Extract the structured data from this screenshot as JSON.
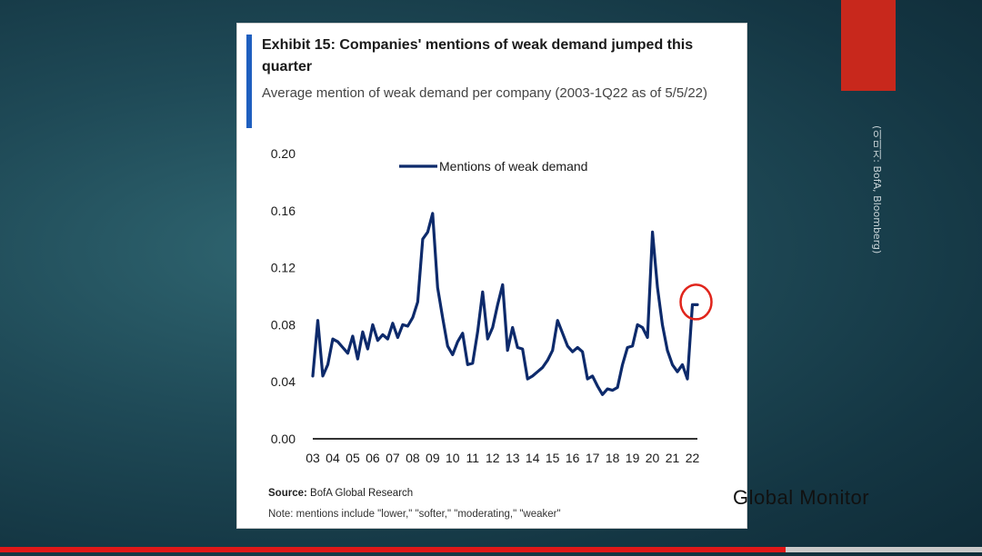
{
  "side_credit": "(이미지: BofA, Bloomberg)",
  "brand": "Global Monitor",
  "progress": 0.8,
  "colors": {
    "line": "#0d2a6b",
    "highlight": "#e0241b",
    "accent": "#c8281c",
    "title_bar": "#1f5fbf"
  },
  "chart_data": {
    "type": "line",
    "title": "Exhibit 15: Companies' mentions of weak demand jumped this quarter",
    "subtitle": "Average mention of weak demand per company (2003-1Q22 as of 5/5/22)",
    "x_tick_labels": [
      "03",
      "04",
      "05",
      "06",
      "07",
      "08",
      "09",
      "10",
      "11",
      "12",
      "13",
      "14",
      "15",
      "16",
      "17",
      "18",
      "19",
      "20",
      "21",
      "22"
    ],
    "xlim": [
      2003,
      2022.25
    ],
    "ylim": [
      0,
      0.2
    ],
    "y_ticks": [
      0.0,
      0.04,
      0.08,
      0.12,
      0.16,
      0.2
    ],
    "y_tick_labels": [
      "0.00",
      "0.04",
      "0.08",
      "0.12",
      "0.16",
      "0.20"
    ],
    "legend": {
      "position": "top-center"
    },
    "series": [
      {
        "name": "Mentions  of weak demand",
        "x": [
          2003.0,
          2003.25,
          2003.5,
          2003.75,
          2004.0,
          2004.25,
          2004.5,
          2004.75,
          2005.0,
          2005.25,
          2005.5,
          2005.75,
          2006.0,
          2006.25,
          2006.5,
          2006.75,
          2007.0,
          2007.25,
          2007.5,
          2007.75,
          2008.0,
          2008.25,
          2008.5,
          2008.75,
          2009.0,
          2009.25,
          2009.5,
          2009.75,
          2010.0,
          2010.25,
          2010.5,
          2010.75,
          2011.0,
          2011.25,
          2011.5,
          2011.75,
          2012.0,
          2012.25,
          2012.5,
          2012.75,
          2013.0,
          2013.25,
          2013.5,
          2013.75,
          2014.0,
          2014.25,
          2014.5,
          2014.75,
          2015.0,
          2015.25,
          2015.5,
          2015.75,
          2016.0,
          2016.25,
          2016.5,
          2016.75,
          2017.0,
          2017.25,
          2017.5,
          2017.75,
          2018.0,
          2018.25,
          2018.5,
          2018.75,
          2019.0,
          2019.25,
          2019.5,
          2019.75,
          2020.0,
          2020.25,
          2020.5,
          2020.75,
          2021.0,
          2021.25,
          2021.5,
          2021.75,
          2022.0,
          2022.25
        ],
        "y": [
          0.044,
          0.083,
          0.044,
          0.052,
          0.07,
          0.068,
          0.064,
          0.06,
          0.072,
          0.056,
          0.075,
          0.063,
          0.08,
          0.069,
          0.073,
          0.07,
          0.081,
          0.071,
          0.08,
          0.079,
          0.085,
          0.096,
          0.14,
          0.145,
          0.158,
          0.106,
          0.085,
          0.065,
          0.059,
          0.068,
          0.074,
          0.052,
          0.053,
          0.075,
          0.103,
          0.07,
          0.078,
          0.094,
          0.108,
          0.062,
          0.078,
          0.064,
          0.063,
          0.042,
          0.044,
          0.047,
          0.05,
          0.055,
          0.062,
          0.083,
          0.074,
          0.065,
          0.061,
          0.064,
          0.061,
          0.042,
          0.044,
          0.037,
          0.031,
          0.035,
          0.034,
          0.036,
          0.052,
          0.064,
          0.065,
          0.08,
          0.078,
          0.071,
          0.145,
          0.106,
          0.08,
          0.062,
          0.052,
          0.047,
          0.052,
          0.042,
          0.094,
          0.094
        ]
      }
    ],
    "annotation": {
      "type": "circle",
      "x": 2022.0,
      "y": 0.094
    }
  },
  "footer": {
    "source_label": "Source:",
    "source_text": " BofA Global Research",
    "note": "Note: mentions include \"lower,\" \"softer,\" \"moderating,\" \"weaker\""
  }
}
